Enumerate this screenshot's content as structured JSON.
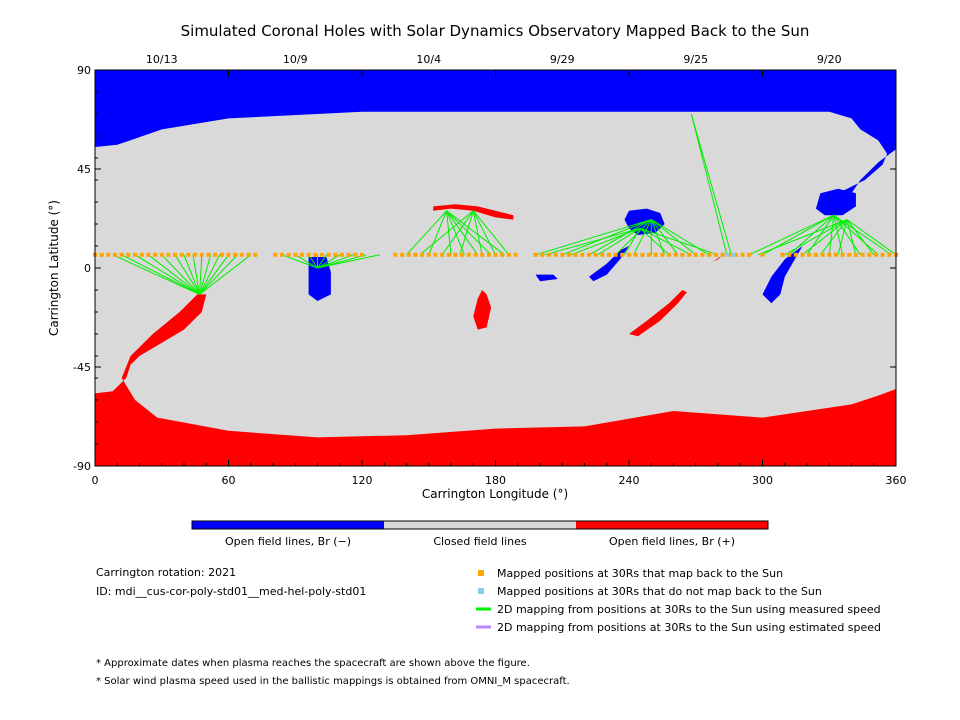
{
  "chart_data": {
    "type": "map",
    "title": "Simulated Coronal Holes with Solar Dynamics Observatory Mapped Back to the Sun",
    "xlabel": "Carrington Longitude (°)",
    "ylabel": "Carrington Latitude (°)",
    "xlim": [
      0,
      360
    ],
    "ylim": [
      -90,
      90
    ],
    "x_ticks": [
      "0",
      "60",
      "120",
      "180",
      "240",
      "300",
      "360"
    ],
    "y_ticks": [
      "90",
      "45",
      "0",
      "-45",
      "-90"
    ],
    "top_dates": [
      {
        "label": "10/13",
        "lon": 30
      },
      {
        "label": "10/9",
        "lon": 90
      },
      {
        "label": "10/4",
        "lon": 150
      },
      {
        "label": "9/29",
        "lon": 210
      },
      {
        "label": "9/25",
        "lon": 270
      },
      {
        "label": "9/20",
        "lon": 330
      }
    ],
    "colors": {
      "open_negative": "#0000ff",
      "closed": "#d9d9d9",
      "open_positive": "#ff0000",
      "mapped_point": "#ffa500",
      "unmapped_point": "#87ceeb",
      "measured_line": "#00ee00",
      "estimated_line": "#bb88ff"
    },
    "colorbar": {
      "negative_label": "Open field lines, Br (−)",
      "closed_label": "Closed field lines",
      "positive_label": "Open field lines, Br (+)"
    },
    "regions": {
      "north_negative": [
        [
          0,
          90
        ],
        [
          360,
          90
        ],
        [
          360,
          54
        ],
        [
          352,
          48
        ],
        [
          344,
          40
        ],
        [
          340,
          34
        ],
        [
          336,
          30
        ],
        [
          332,
          28
        ],
        [
          326,
          27
        ],
        [
          328,
          31
        ],
        [
          336,
          35
        ],
        [
          346,
          40
        ],
        [
          354,
          47
        ],
        [
          356,
          52
        ],
        [
          352,
          58
        ],
        [
          344,
          63
        ],
        [
          340,
          68
        ],
        [
          330,
          71
        ],
        [
          200,
          71
        ],
        [
          120,
          71
        ],
        [
          60,
          68
        ],
        [
          30,
          63
        ],
        [
          10,
          56
        ],
        [
          0,
          55
        ]
      ],
      "south_positive": [
        [
          0,
          -57
        ],
        [
          8,
          -56
        ],
        [
          14,
          -50
        ],
        [
          16,
          -44
        ],
        [
          20,
          -40
        ],
        [
          30,
          -34
        ],
        [
          40,
          -28
        ],
        [
          48,
          -20
        ],
        [
          50,
          -12
        ],
        [
          46,
          -12
        ],
        [
          38,
          -20
        ],
        [
          26,
          -30
        ],
        [
          16,
          -40
        ],
        [
          12,
          -50
        ],
        [
          18,
          -60
        ],
        [
          28,
          -68
        ],
        [
          60,
          -74
        ],
        [
          100,
          -77
        ],
        [
          140,
          -76
        ],
        [
          180,
          -73
        ],
        [
          220,
          -72
        ],
        [
          260,
          -65
        ],
        [
          300,
          -68
        ],
        [
          340,
          -62
        ],
        [
          352,
          -58
        ],
        [
          360,
          -55
        ],
        [
          360,
          -90
        ],
        [
          0,
          -90
        ]
      ],
      "positive_patch_1": [
        [
          152,
          28
        ],
        [
          162,
          29
        ],
        [
          172,
          28
        ],
        [
          180,
          26
        ],
        [
          188,
          24
        ],
        [
          188,
          22
        ],
        [
          180,
          23
        ],
        [
          170,
          26
        ],
        [
          160,
          27
        ],
        [
          152,
          26
        ]
      ],
      "positive_patch_2": [
        [
          174,
          -10
        ],
        [
          176,
          -12
        ],
        [
          178,
          -18
        ],
        [
          176,
          -27
        ],
        [
          172,
          -28
        ],
        [
          170,
          -22
        ],
        [
          172,
          -14
        ]
      ],
      "positive_patch_3": [
        [
          266,
          -11
        ],
        [
          262,
          -16
        ],
        [
          254,
          -24
        ],
        [
          244,
          -31
        ],
        [
          240,
          -30
        ],
        [
          248,
          -24
        ],
        [
          258,
          -16
        ],
        [
          264,
          -10
        ]
      ],
      "positive_patch_4": [
        [
          280,
          4
        ],
        [
          282,
          6
        ],
        [
          278,
          3
        ],
        [
          276,
          2
        ]
      ],
      "negative_patch_1": [
        [
          96,
          5
        ],
        [
          104,
          5
        ],
        [
          106,
          -2
        ],
        [
          106,
          -12
        ],
        [
          100,
          -15
        ],
        [
          96,
          -12
        ],
        [
          96,
          -2
        ]
      ],
      "negative_patch_2": [
        [
          240,
          26
        ],
        [
          248,
          27
        ],
        [
          254,
          25
        ],
        [
          256,
          20
        ],
        [
          252,
          16
        ],
        [
          244,
          15
        ],
        [
          240,
          18
        ],
        [
          238,
          22
        ]
      ],
      "negative_patch_3": [
        [
          240,
          10
        ],
        [
          236,
          4
        ],
        [
          230,
          -3
        ],
        [
          224,
          -6
        ],
        [
          222,
          -4
        ],
        [
          230,
          2
        ],
        [
          236,
          8
        ]
      ],
      "negative_patch_4": [
        [
          198,
          -3
        ],
        [
          206,
          -3
        ],
        [
          208,
          -5
        ],
        [
          200,
          -6
        ]
      ],
      "negative_patch_5": [
        [
          318,
          10
        ],
        [
          314,
          3
        ],
        [
          310,
          -4
        ],
        [
          308,
          -12
        ],
        [
          304,
          -16
        ],
        [
          300,
          -12
        ],
        [
          304,
          -4
        ],
        [
          310,
          4
        ]
      ],
      "negative_patch_6": [
        [
          326,
          34
        ],
        [
          334,
          36
        ],
        [
          342,
          34
        ],
        [
          342,
          28
        ],
        [
          336,
          24
        ],
        [
          328,
          24
        ],
        [
          324,
          27
        ]
      ]
    },
    "mapped_points_lat": 6,
    "mapped_points_lon": [
      0,
      3,
      6,
      9,
      12,
      15,
      18,
      21,
      24,
      27,
      30,
      33,
      36,
      39,
      42,
      45,
      48,
      51,
      54,
      57,
      60,
      63,
      66,
      69,
      72,
      81,
      84,
      87,
      90,
      93,
      96,
      99,
      102,
      105,
      108,
      111,
      114,
      117,
      120,
      135,
      138,
      141,
      144,
      147,
      150,
      153,
      156,
      159,
      162,
      165,
      168,
      171,
      174,
      177,
      180,
      183,
      186,
      189,
      198,
      201,
      204,
      207,
      210,
      213,
      216,
      219,
      222,
      225,
      228,
      231,
      234,
      237,
      240,
      243,
      246,
      249,
      252,
      255,
      258,
      261,
      264,
      267,
      270,
      273,
      276,
      279,
      282,
      285,
      288,
      291,
      294,
      300,
      309,
      312,
      315,
      318,
      321,
      324,
      327,
      330,
      333,
      336,
      339,
      342,
      345,
      348,
      351,
      354,
      357,
      360
    ],
    "unmapped_points_lon": [
      284,
      287
    ],
    "measured_mappings": [
      {
        "to": [
          47,
          -12
        ],
        "from": [
          8,
          6,
          12,
          6,
          18,
          6,
          24,
          6,
          30,
          6,
          36,
          6,
          40,
          6,
          44,
          6,
          48,
          6,
          52,
          6,
          56,
          6,
          60,
          6,
          64,
          6,
          70,
          6
        ]
      },
      {
        "to": [
          100,
          0
        ],
        "from": [
          84,
          6,
          90,
          6,
          96,
          6,
          100,
          6,
          104,
          6,
          110,
          6,
          116,
          6,
          122,
          6,
          128,
          6
        ]
      },
      {
        "to": [
          158,
          26
        ],
        "from": [
          140,
          6,
          150,
          6,
          160,
          6,
          166,
          6,
          172,
          6,
          178,
          6,
          184,
          6
        ]
      },
      {
        "to": [
          170,
          26
        ],
        "from": [
          146,
          6,
          156,
          6,
          164,
          6,
          174,
          6,
          180,
          6,
          186,
          6
        ]
      },
      {
        "to": [
          250,
          22
        ],
        "from": [
          198,
          6,
          210,
          6,
          222,
          6,
          234,
          6,
          242,
          6,
          250,
          6,
          256,
          6,
          262,
          6,
          270,
          6,
          276,
          6
        ]
      },
      {
        "to": [
          245,
          18
        ],
        "from": [
          202,
          6,
          214,
          6,
          226,
          6,
          238,
          6,
          258,
          6,
          268,
          6,
          280,
          6
        ]
      },
      {
        "to": [
          268,
          70
        ],
        "from": [
          284,
          6,
          286,
          6
        ]
      },
      {
        "to": [
          332,
          24
        ],
        "from": [
          294,
          6,
          300,
          6,
          312,
          6,
          320,
          6,
          330,
          6,
          336,
          6,
          344,
          6,
          352,
          6,
          358,
          6
        ]
      },
      {
        "to": [
          338,
          22
        ],
        "from": [
          298,
          6,
          310,
          6,
          318,
          6,
          326,
          6,
          334,
          6,
          342,
          6,
          350,
          6,
          360,
          6
        ]
      }
    ],
    "estimated_mappings": []
  },
  "info": {
    "rotation": "Carrington rotation: 2021",
    "id": "ID: mdi__cus-cor-poly-std01__med-hel-poly-std01"
  },
  "legend": [
    {
      "label": "Mapped positions at 30Rs that map back to the Sun",
      "symbol": "square",
      "color": "#ffa500"
    },
    {
      "label": "Mapped positions at 30Rs that do not map back to the Sun",
      "symbol": "square",
      "color": "#87ceeb"
    },
    {
      "label": "2D mapping from positions at 30Rs to the Sun using measured speed",
      "symbol": "line",
      "color": "#00ee00"
    },
    {
      "label": "2D mapping from positions at 30Rs to the Sun using estimated speed",
      "symbol": "line",
      "color": "#bb88ff"
    }
  ],
  "notes": [
    "* Approximate dates when plasma reaches the spacecraft are shown above the figure.",
    "* Solar wind plasma speed used in the ballistic mappings is obtained from OMNI_M spacecraft."
  ]
}
